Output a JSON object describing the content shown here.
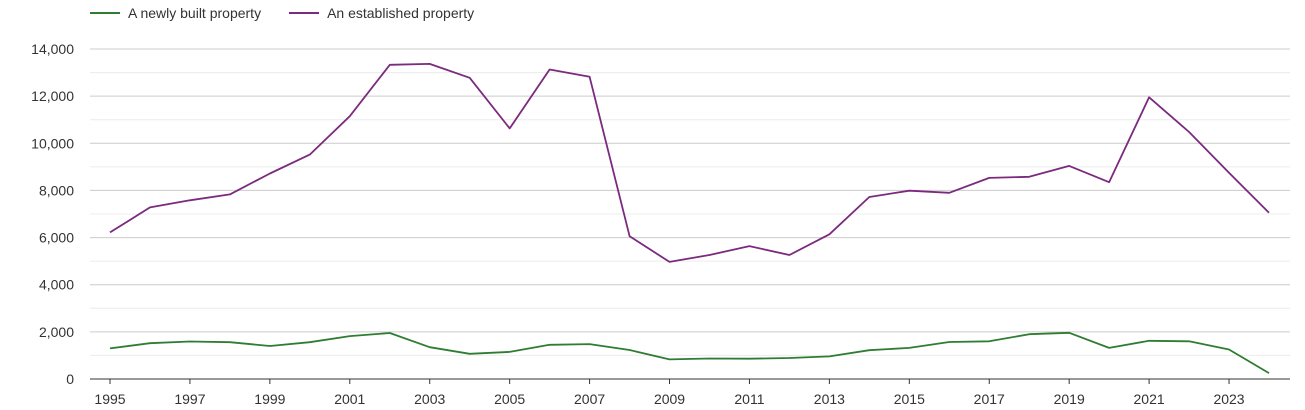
{
  "legend": {
    "items": [
      {
        "label": "A newly built property",
        "color": "#2e7d32"
      },
      {
        "label": "An established property",
        "color": "#7b2a7e"
      }
    ]
  },
  "chart_data": {
    "type": "line",
    "x": [
      1995,
      1996,
      1997,
      1998,
      1999,
      2000,
      2001,
      2002,
      2003,
      2004,
      2005,
      2006,
      2007,
      2008,
      2009,
      2010,
      2011,
      2012,
      2013,
      2014,
      2015,
      2016,
      2017,
      2018,
      2019,
      2020,
      2021,
      2022,
      2023,
      2024
    ],
    "x_tick_labels": [
      "1995",
      "1997",
      "1999",
      "2001",
      "2003",
      "2005",
      "2007",
      "2009",
      "2011",
      "2013",
      "2015",
      "2017",
      "2019",
      "2021",
      "2023"
    ],
    "y_tick_labels": [
      "0",
      "2,000",
      "4,000",
      "6,000",
      "8,000",
      "10,000",
      "12,000",
      "14,000"
    ],
    "ylim": [
      0,
      14000
    ],
    "grid": true,
    "legend_position": "top-left",
    "title": "",
    "xlabel": "",
    "ylabel": "",
    "series": [
      {
        "name": "A newly built property",
        "color": "#2e7d32",
        "values": [
          1300,
          1520,
          1590,
          1560,
          1400,
          1560,
          1820,
          1950,
          1350,
          1070,
          1150,
          1450,
          1480,
          1230,
          830,
          870,
          860,
          890,
          960,
          1220,
          1320,
          1570,
          1600,
          1900,
          1960,
          1320,
          1620,
          1600,
          1250,
          250
        ]
      },
      {
        "name": "An established property",
        "color": "#7b2a7e",
        "values": [
          6220,
          7280,
          7580,
          7830,
          8720,
          9520,
          11150,
          13330,
          13370,
          12780,
          10630,
          13130,
          12820,
          6060,
          4970,
          5260,
          5640,
          5260,
          6140,
          7720,
          7990,
          7900,
          8530,
          8580,
          9040,
          8350,
          11950,
          10480,
          8750,
          7050
        ]
      }
    ]
  }
}
